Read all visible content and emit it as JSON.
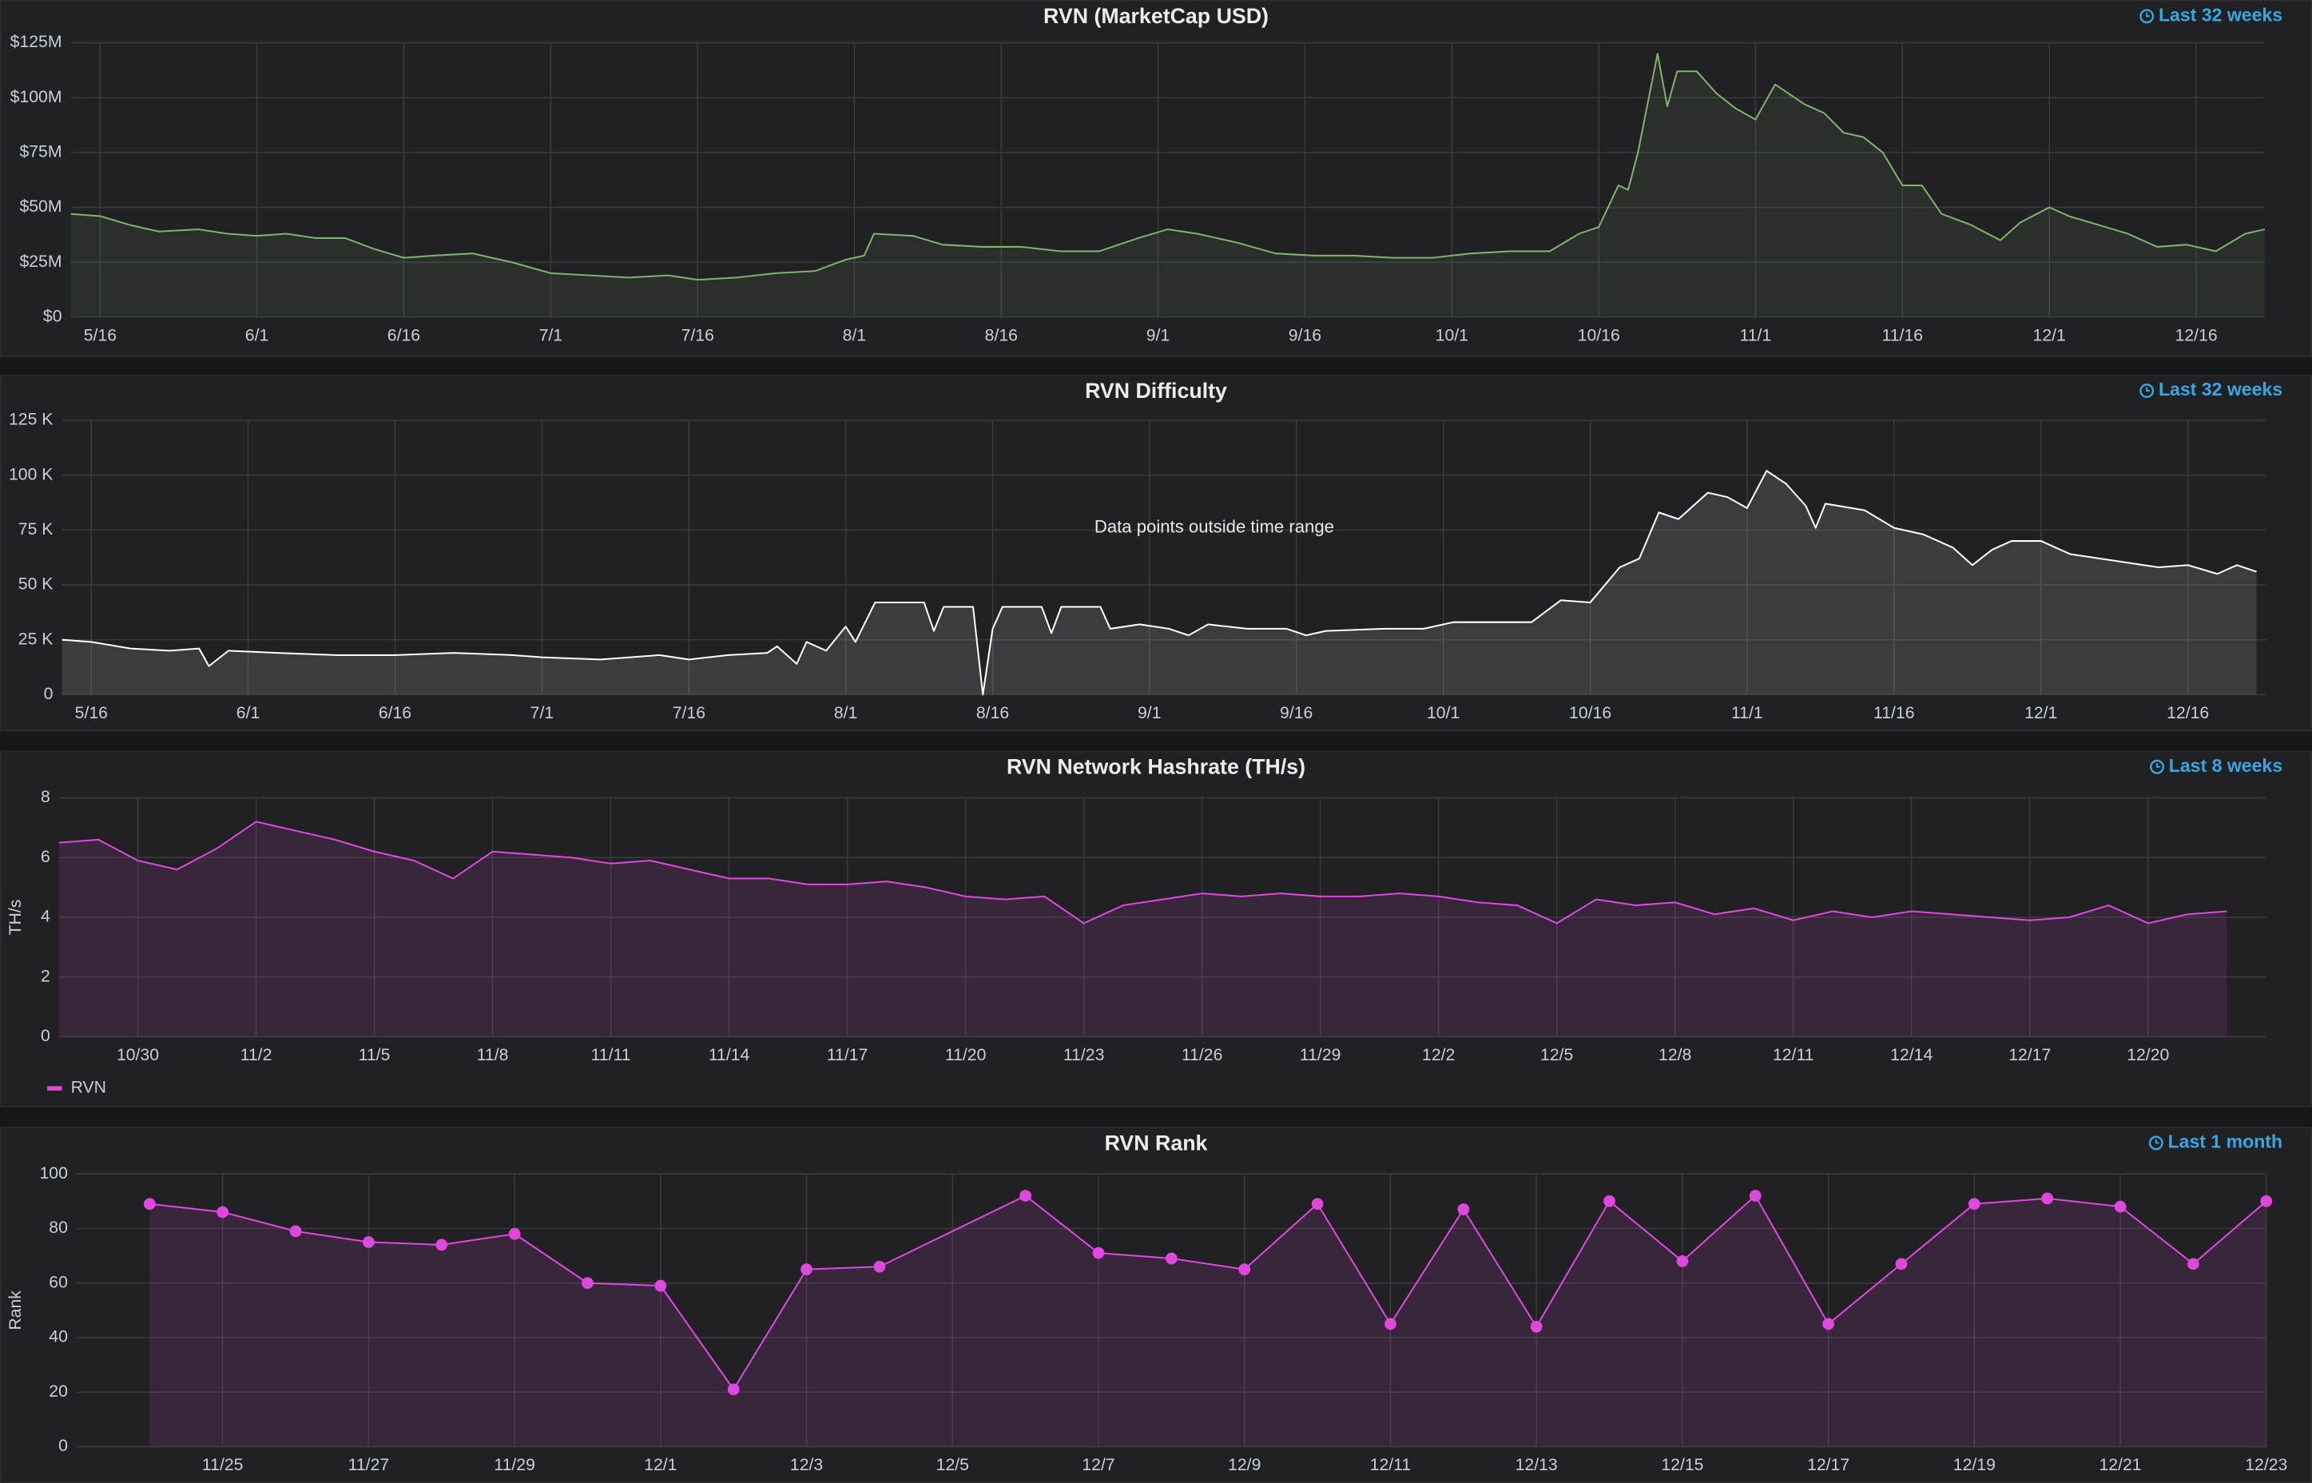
{
  "chart_data": [
    {
      "type": "line",
      "title": "RVN (MarketCap USD)",
      "time_range": "Last 32 weeks",
      "color": "#7eb26d",
      "fill": "rgba(126,178,109,0.10)",
      "x": [
        "5/13",
        "5/16",
        "5/19",
        "5/22",
        "5/26",
        "5/29",
        "6/1",
        "6/4",
        "6/7",
        "6/10",
        "6/13",
        "6/16",
        "6/19",
        "6/23",
        "6/27",
        "7/1",
        "7/5",
        "7/9",
        "7/13",
        "7/16",
        "7/20",
        "7/24",
        "7/28",
        "7/31",
        "8/2",
        "8/3",
        "8/7",
        "8/10",
        "8/14",
        "8/18",
        "8/22",
        "8/26",
        "8/30",
        "9/2",
        "9/5",
        "9/9",
        "9/13",
        "9/17",
        "9/21",
        "9/25",
        "9/29",
        "10/3",
        "10/7",
        "10/11",
        "10/14",
        "10/16",
        "10/18",
        "10/19",
        "10/20",
        "10/22",
        "10/23",
        "10/24",
        "10/26",
        "10/28",
        "10/30",
        "11/1",
        "11/3",
        "11/6",
        "11/8",
        "11/10",
        "11/12",
        "11/14",
        "11/16",
        "11/18",
        "11/20",
        "11/23",
        "11/26",
        "11/28",
        "12/1",
        "12/3",
        "12/6",
        "12/9",
        "12/12",
        "12/15",
        "12/18",
        "12/21",
        "12/23"
      ],
      "values": [
        47000000,
        46000000,
        42000000,
        39000000,
        40000000,
        38000000,
        37000000,
        38000000,
        36000000,
        36000000,
        31000000,
        27000000,
        28000000,
        29000000,
        25000000,
        20000000,
        19000000,
        18000000,
        19000000,
        17000000,
        18000000,
        20000000,
        21000000,
        26000000,
        28000000,
        38000000,
        37000000,
        33000000,
        32000000,
        32000000,
        30000000,
        30000000,
        36000000,
        40000000,
        38000000,
        34000000,
        29000000,
        28000000,
        28000000,
        27000000,
        27000000,
        29000000,
        30000000,
        30000000,
        38000000,
        41000000,
        60000000,
        58000000,
        75000000,
        120000000,
        96000000,
        112000000,
        112000000,
        102000000,
        95000000,
        90000000,
        106000000,
        97000000,
        93000000,
        84000000,
        82000000,
        75000000,
        60000000,
        60000000,
        47000000,
        42000000,
        35000000,
        43000000,
        50000000,
        46000000,
        42000000,
        38000000,
        32000000,
        33000000,
        30000000,
        38000000,
        40000000
      ],
      "xlim": [
        "5/13",
        "12/23"
      ],
      "xticks": [
        "5/16",
        "6/1",
        "6/16",
        "7/1",
        "7/16",
        "8/1",
        "8/16",
        "9/1",
        "9/16",
        "10/1",
        "10/16",
        "11/1",
        "11/16",
        "12/1",
        "12/16"
      ],
      "ylim": [
        0,
        125000000
      ],
      "yticks": [
        {
          "value": 0,
          "label": "$0"
        },
        {
          "value": 25000000,
          "label": "$25M"
        },
        {
          "value": 50000000,
          "label": "$50M"
        },
        {
          "value": 75000000,
          "label": "$75M"
        },
        {
          "value": 100000000,
          "label": "$100M"
        },
        {
          "value": 125000000,
          "label": "$125M"
        }
      ],
      "grid": true
    },
    {
      "type": "line",
      "title": "RVN Difficulty",
      "time_range": "Last 32 weeks",
      "annotation": "Data points outside time range",
      "color": "#ffffff",
      "fill": "rgba(255,255,255,0.12)",
      "x": [
        "5/13",
        "5/16",
        "5/20",
        "5/24",
        "5/27",
        "5/28",
        "5/30",
        "6/4",
        "6/10",
        "6/16",
        "6/22",
        "6/28",
        "7/1",
        "7/7",
        "7/13",
        "7/16",
        "7/20",
        "7/24",
        "7/25",
        "7/27",
        "7/28",
        "7/30",
        "8/1",
        "8/2",
        "8/4",
        "8/9",
        "8/10",
        "8/11",
        "8/14",
        "8/15",
        "8/16",
        "8/17",
        "8/21",
        "8/22",
        "8/23",
        "8/27",
        "8/28",
        "8/31",
        "9/3",
        "9/5",
        "9/7",
        "9/11",
        "9/15",
        "9/17",
        "9/19",
        "9/25",
        "9/29",
        "10/2",
        "10/7",
        "10/10",
        "10/13",
        "10/16",
        "10/19",
        "10/21",
        "10/23",
        "10/25",
        "10/28",
        "10/30",
        "11/1",
        "11/3",
        "11/5",
        "11/7",
        "11/8",
        "11/9",
        "11/13",
        "11/16",
        "11/19",
        "11/22",
        "11/24",
        "11/26",
        "11/28",
        "12/1",
        "12/4",
        "12/7",
        "12/10",
        "12/13",
        "12/16",
        "12/19",
        "12/21",
        "12/23"
      ],
      "values": [
        25000,
        24000,
        21000,
        20000,
        21000,
        13000,
        20000,
        19000,
        18000,
        18000,
        19000,
        18000,
        17000,
        16000,
        18000,
        16000,
        18000,
        19000,
        22000,
        14000,
        24000,
        20000,
        31000,
        24000,
        42000,
        42000,
        29000,
        40000,
        40000,
        0,
        30000,
        40000,
        40000,
        28000,
        40000,
        40000,
        30000,
        32000,
        30000,
        27000,
        32000,
        30000,
        30000,
        27000,
        29000,
        30000,
        30000,
        33000,
        33000,
        33000,
        43000,
        42000,
        58000,
        62000,
        83000,
        80000,
        92000,
        90000,
        85000,
        102000,
        96000,
        86000,
        76000,
        87000,
        84000,
        76000,
        73000,
        67000,
        59000,
        66000,
        70000,
        70000,
        64000,
        62000,
        60000,
        58000,
        59000,
        55000,
        59000,
        56000
      ],
      "xlim": [
        "5/13",
        "12/24"
      ],
      "xticks": [
        "5/16",
        "6/1",
        "6/16",
        "7/1",
        "7/16",
        "8/1",
        "8/16",
        "9/1",
        "9/16",
        "10/1",
        "10/16",
        "11/1",
        "11/16",
        "12/1",
        "12/16"
      ],
      "ylim": [
        0,
        125000
      ],
      "yticks": [
        0,
        {
          "value": 25000,
          "label": "25 K"
        },
        {
          "value": 50000,
          "label": "50 K"
        },
        {
          "value": 75000,
          "label": "75 K"
        },
        {
          "value": 100000,
          "label": "100 K"
        },
        {
          "value": 125000,
          "label": "125 K"
        }
      ],
      "grid": true
    },
    {
      "type": "line",
      "title": "RVN Network Hashrate (TH/s)",
      "time_range": "Last 8 weeks",
      "ylabel": "TH/s",
      "x": [
        "10/28",
        "10/29",
        "10/30",
        "10/31",
        "11/1",
        "11/2",
        "11/3",
        "11/4",
        "11/5",
        "11/6",
        "11/7",
        "11/8",
        "11/9",
        "11/10",
        "11/11",
        "11/12",
        "11/13",
        "11/14",
        "11/15",
        "11/16",
        "11/17",
        "11/18",
        "11/19",
        "11/20",
        "11/21",
        "11/22",
        "11/23",
        "11/24",
        "11/25",
        "11/26",
        "11/27",
        "11/28",
        "11/29",
        "11/30",
        "12/1",
        "12/2",
        "12/3",
        "12/4",
        "12/5",
        "12/6",
        "12/7",
        "12/8",
        "12/9",
        "12/10",
        "12/11",
        "12/12",
        "12/13",
        "12/14",
        "12/15",
        "12/16",
        "12/17",
        "12/18",
        "12/19",
        "12/20",
        "12/21",
        "12/22"
      ],
      "series": [
        {
          "name": "RVN",
          "color": "#e046e0",
          "fill": "rgba(224,70,224,0.12)",
          "values": [
            6.5,
            6.6,
            5.9,
            5.6,
            6.3,
            7.2,
            6.9,
            6.6,
            6.2,
            5.9,
            5.3,
            6.2,
            6.1,
            6.0,
            5.8,
            5.9,
            5.6,
            5.3,
            5.3,
            5.1,
            5.1,
            5.2,
            5.0,
            4.7,
            4.6,
            4.7,
            3.8,
            4.4,
            4.6,
            4.8,
            4.7,
            4.8,
            4.7,
            4.7,
            4.8,
            4.7,
            4.5,
            4.4,
            3.8,
            4.6,
            4.4,
            4.5,
            4.1,
            4.3,
            3.9,
            4.2,
            4.0,
            4.2,
            4.1,
            4.0,
            3.9,
            4.0,
            4.4,
            3.8,
            4.1,
            4.2
          ]
        }
      ],
      "xlim": [
        "10/28",
        "12/23"
      ],
      "xticks": [
        "10/30",
        "11/2",
        "11/5",
        "11/8",
        "11/11",
        "11/14",
        "11/17",
        "11/20",
        "11/23",
        "11/26",
        "11/29",
        "12/2",
        "12/5",
        "12/8",
        "12/11",
        "12/14",
        "12/17",
        "12/20"
      ],
      "ylim": [
        0,
        8
      ],
      "yticks": [
        0,
        2,
        4,
        6,
        8
      ],
      "grid": true,
      "legend": "bottom-left"
    },
    {
      "type": "line",
      "title": "RVN Rank",
      "time_range": "Last 1 month",
      "ylabel": "Rank",
      "color": "#e046e0",
      "fill": "rgba(224,70,224,0.12)",
      "points": true,
      "x": [
        "11/24",
        "11/25",
        "11/26",
        "11/27",
        "11/28",
        "11/29",
        "11/30",
        "12/1",
        "12/2",
        "12/3",
        "12/4",
        "12/6",
        "12/7",
        "12/8",
        "12/9",
        "12/10",
        "12/11",
        "12/12",
        "12/13",
        "12/14",
        "12/15",
        "12/16",
        "12/17",
        "12/18",
        "12/19",
        "12/20",
        "12/21",
        "12/22",
        "12/23"
      ],
      "values": [
        89,
        86,
        79,
        75,
        74,
        78,
        60,
        59,
        21,
        65,
        66,
        92,
        71,
        69,
        65,
        89,
        45,
        87,
        44,
        90,
        68,
        92,
        45,
        67,
        89,
        91,
        88,
        67,
        90
      ],
      "xlim": [
        "11/23",
        "12/23"
      ],
      "xticks": [
        "11/25",
        "11/27",
        "11/29",
        "12/1",
        "12/3",
        "12/5",
        "12/7",
        "12/9",
        "12/11",
        "12/13",
        "12/15",
        "12/17",
        "12/19",
        "12/21",
        "12/23"
      ],
      "ylim": [
        0,
        100
      ],
      "yticks": [
        0,
        20,
        40,
        60,
        80,
        100
      ],
      "grid": true
    }
  ]
}
